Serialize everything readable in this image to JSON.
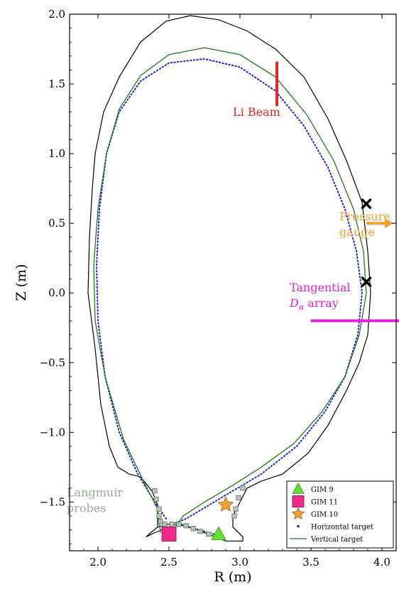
{
  "chart_data": {
    "type": "line",
    "xlabel": "R (m)",
    "ylabel": "Z (m)",
    "xlim": [
      1.8,
      4.1
    ],
    "ylim": [
      -1.85,
      2.0
    ],
    "xticks": [
      "2.0",
      "2.5",
      "3.0",
      "3.5",
      "4.0"
    ],
    "yticks": [
      "2.0",
      "1.5",
      "1.0",
      "0.5",
      "0.0",
      "−0.5",
      "−1.0",
      "−1.5"
    ],
    "grid": false,
    "legend_position": "bottom-right",
    "wall": {
      "color": "#000000",
      "points": [
        [
          2.42,
          -1.68
        ],
        [
          2.42,
          -1.52
        ],
        [
          2.38,
          -1.42
        ],
        [
          2.3,
          -1.32
        ],
        [
          2.22,
          -1.3
        ],
        [
          2.14,
          -1.25
        ],
        [
          2.08,
          -1.1
        ],
        [
          2.02,
          -0.8
        ],
        [
          1.98,
          -0.4
        ],
        [
          1.93,
          0.0
        ],
        [
          1.94,
          0.4
        ],
        [
          1.96,
          0.75
        ],
        [
          1.98,
          1.0
        ],
        [
          2.04,
          1.3
        ],
        [
          2.15,
          1.55
        ],
        [
          2.3,
          1.8
        ],
        [
          2.48,
          1.95
        ],
        [
          2.65,
          1.99
        ],
        [
          2.85,
          1.96
        ],
        [
          3.05,
          1.88
        ],
        [
          3.25,
          1.75
        ],
        [
          3.45,
          1.55
        ],
        [
          3.62,
          1.25
        ],
        [
          3.75,
          0.95
        ],
        [
          3.86,
          0.65
        ],
        [
          3.9,
          0.3
        ],
        [
          3.92,
          0.0
        ],
        [
          3.9,
          -0.3
        ],
        [
          3.84,
          -0.5
        ],
        [
          3.75,
          -0.7
        ],
        [
          3.62,
          -0.95
        ],
        [
          3.48,
          -1.15
        ],
        [
          3.3,
          -1.3
        ],
        [
          3.15,
          -1.35
        ],
        [
          3.05,
          -1.4
        ],
        [
          3.0,
          -1.5
        ],
        [
          2.95,
          -1.6
        ],
        [
          2.95,
          -1.68
        ],
        [
          3.02,
          -1.75
        ],
        [
          3.02,
          -1.78
        ],
        [
          2.9,
          -1.78
        ],
        [
          2.8,
          -1.74
        ],
        [
          2.7,
          -1.7
        ],
        [
          2.6,
          -1.67
        ],
        [
          2.5,
          -1.66
        ],
        [
          2.42,
          -1.68
        ],
        [
          2.36,
          -1.73
        ],
        [
          2.34,
          -1.75
        ],
        [
          2.4,
          -1.72
        ],
        [
          2.45,
          -1.7
        ]
      ]
    },
    "series": [
      {
        "name": "Horizontal target",
        "style": "dotted",
        "color": "#1f1fe0",
        "points": [
          [
            2.48,
            -1.62
          ],
          [
            2.4,
            -1.5
          ],
          [
            2.28,
            -1.3
          ],
          [
            2.15,
            -1.0
          ],
          [
            2.05,
            -0.6
          ],
          [
            2.0,
            -0.2
          ],
          [
            1.99,
            0.2
          ],
          [
            2.01,
            0.6
          ],
          [
            2.06,
            1.0
          ],
          [
            2.15,
            1.3
          ],
          [
            2.3,
            1.52
          ],
          [
            2.5,
            1.65
          ],
          [
            2.75,
            1.68
          ],
          [
            3.0,
            1.62
          ],
          [
            3.25,
            1.45
          ],
          [
            3.45,
            1.2
          ],
          [
            3.62,
            0.9
          ],
          [
            3.74,
            0.6
          ],
          [
            3.82,
            0.3
          ],
          [
            3.86,
            0.0
          ],
          [
            3.83,
            -0.3
          ],
          [
            3.74,
            -0.6
          ],
          [
            3.6,
            -0.85
          ],
          [
            3.4,
            -1.1
          ],
          [
            3.15,
            -1.3
          ],
          [
            2.9,
            -1.45
          ],
          [
            2.72,
            -1.56
          ],
          [
            2.62,
            -1.62
          ],
          [
            2.55,
            -1.65
          ],
          [
            2.65,
            -1.68
          ],
          [
            2.78,
            -1.72
          ],
          [
            2.85,
            -1.74
          ]
        ]
      },
      {
        "name": "Vertical target",
        "style": "solid",
        "color": "#1a7a1a",
        "points": [
          [
            2.44,
            -1.72
          ],
          [
            2.42,
            -1.55
          ],
          [
            2.32,
            -1.35
          ],
          [
            2.18,
            -1.05
          ],
          [
            2.05,
            -0.6
          ],
          [
            1.98,
            -0.2
          ],
          [
            1.97,
            0.2
          ],
          [
            2.0,
            0.6
          ],
          [
            2.06,
            1.0
          ],
          [
            2.15,
            1.32
          ],
          [
            2.3,
            1.56
          ],
          [
            2.5,
            1.71
          ],
          [
            2.75,
            1.76
          ],
          [
            3.0,
            1.71
          ],
          [
            3.25,
            1.55
          ],
          [
            3.47,
            1.28
          ],
          [
            3.66,
            0.95
          ],
          [
            3.8,
            0.6
          ],
          [
            3.87,
            0.3
          ],
          [
            3.89,
            0.0
          ],
          [
            3.84,
            -0.3
          ],
          [
            3.74,
            -0.6
          ],
          [
            3.58,
            -0.85
          ],
          [
            3.38,
            -1.08
          ],
          [
            3.15,
            -1.25
          ],
          [
            2.95,
            -1.38
          ],
          [
            2.75,
            -1.5
          ],
          [
            2.6,
            -1.6
          ],
          [
            2.52,
            -1.72
          ]
        ]
      }
    ],
    "langmuir_probes": [
      [
        2.43,
        -1.55
      ],
      [
        2.43,
        -1.6
      ],
      [
        2.44,
        -1.64
      ],
      [
        2.47,
        -1.66
      ],
      [
        2.52,
        -1.66
      ],
      [
        2.57,
        -1.66
      ],
      [
        2.62,
        -1.67
      ],
      [
        2.67,
        -1.69
      ],
      [
        2.72,
        -1.71
      ],
      [
        2.78,
        -1.73
      ],
      [
        2.84,
        -1.75
      ],
      [
        2.96,
        -1.6
      ],
      [
        2.97,
        -1.55
      ],
      [
        2.99,
        -1.47
      ],
      [
        3.02,
        -1.4
      ],
      [
        2.41,
        -1.48
      ],
      [
        2.4,
        -1.42
      ]
    ],
    "markers": [
      {
        "label": "GIM 9",
        "shape": "triangle",
        "color": "#5fe32a",
        "x": 2.85,
        "y": -1.73
      },
      {
        "label": "GIM 11",
        "shape": "square",
        "color": "#ee2a8c",
        "x": 2.5,
        "y": -1.73
      },
      {
        "label": "GIM 10",
        "shape": "star",
        "color": "#f5a030",
        "x": 2.9,
        "y": -1.52
      },
      {
        "label": "",
        "shape": "x",
        "color": "#000000",
        "x": 3.89,
        "y": 0.64
      },
      {
        "label": "",
        "shape": "x",
        "color": "#000000",
        "x": 3.89,
        "y": 0.08
      }
    ],
    "diagnostics": [
      {
        "text": "Li Beam",
        "color": "#e8262a",
        "line": [
          [
            3.26,
            1.66
          ],
          [
            3.26,
            1.34
          ]
        ],
        "label_at": [
          2.95,
          1.27
        ]
      },
      {
        "text": "Pressure gauge",
        "lines": [
          "Pressure",
          "gauge"
        ],
        "color": "#f5a030",
        "arrow": [
          [
            3.89,
            0.5
          ],
          [
            4.08,
            0.5
          ]
        ],
        "label_at": [
          3.7,
          0.52
        ]
      },
      {
        "text": "Tangential D_α array",
        "lines": [
          "Tangential",
          "Dα array"
        ],
        "color": "#e61fd4",
        "line": [
          [
            3.5,
            -0.2
          ],
          [
            4.12,
            -0.2
          ]
        ],
        "label_at": [
          3.35,
          0.01
        ]
      },
      {
        "text": "Langmuir probes",
        "lines": [
          "Langmuir",
          "probes"
        ],
        "color": "#9aaa96",
        "label_at": [
          1.78,
          -1.46
        ]
      }
    ],
    "legend": [
      {
        "label": "GIM 9",
        "shape": "triangle",
        "color": "#5fe32a"
      },
      {
        "label": "GIM 11",
        "shape": "square",
        "color": "#ee2a8c"
      },
      {
        "label": "GIM 10",
        "shape": "star",
        "color": "#f5a030"
      },
      {
        "label": "Horizontal target",
        "shape": "dot",
        "color": "#1f1fe0"
      },
      {
        "label": "Vertical target",
        "shape": "line",
        "color": "#1a7a1a"
      }
    ]
  }
}
